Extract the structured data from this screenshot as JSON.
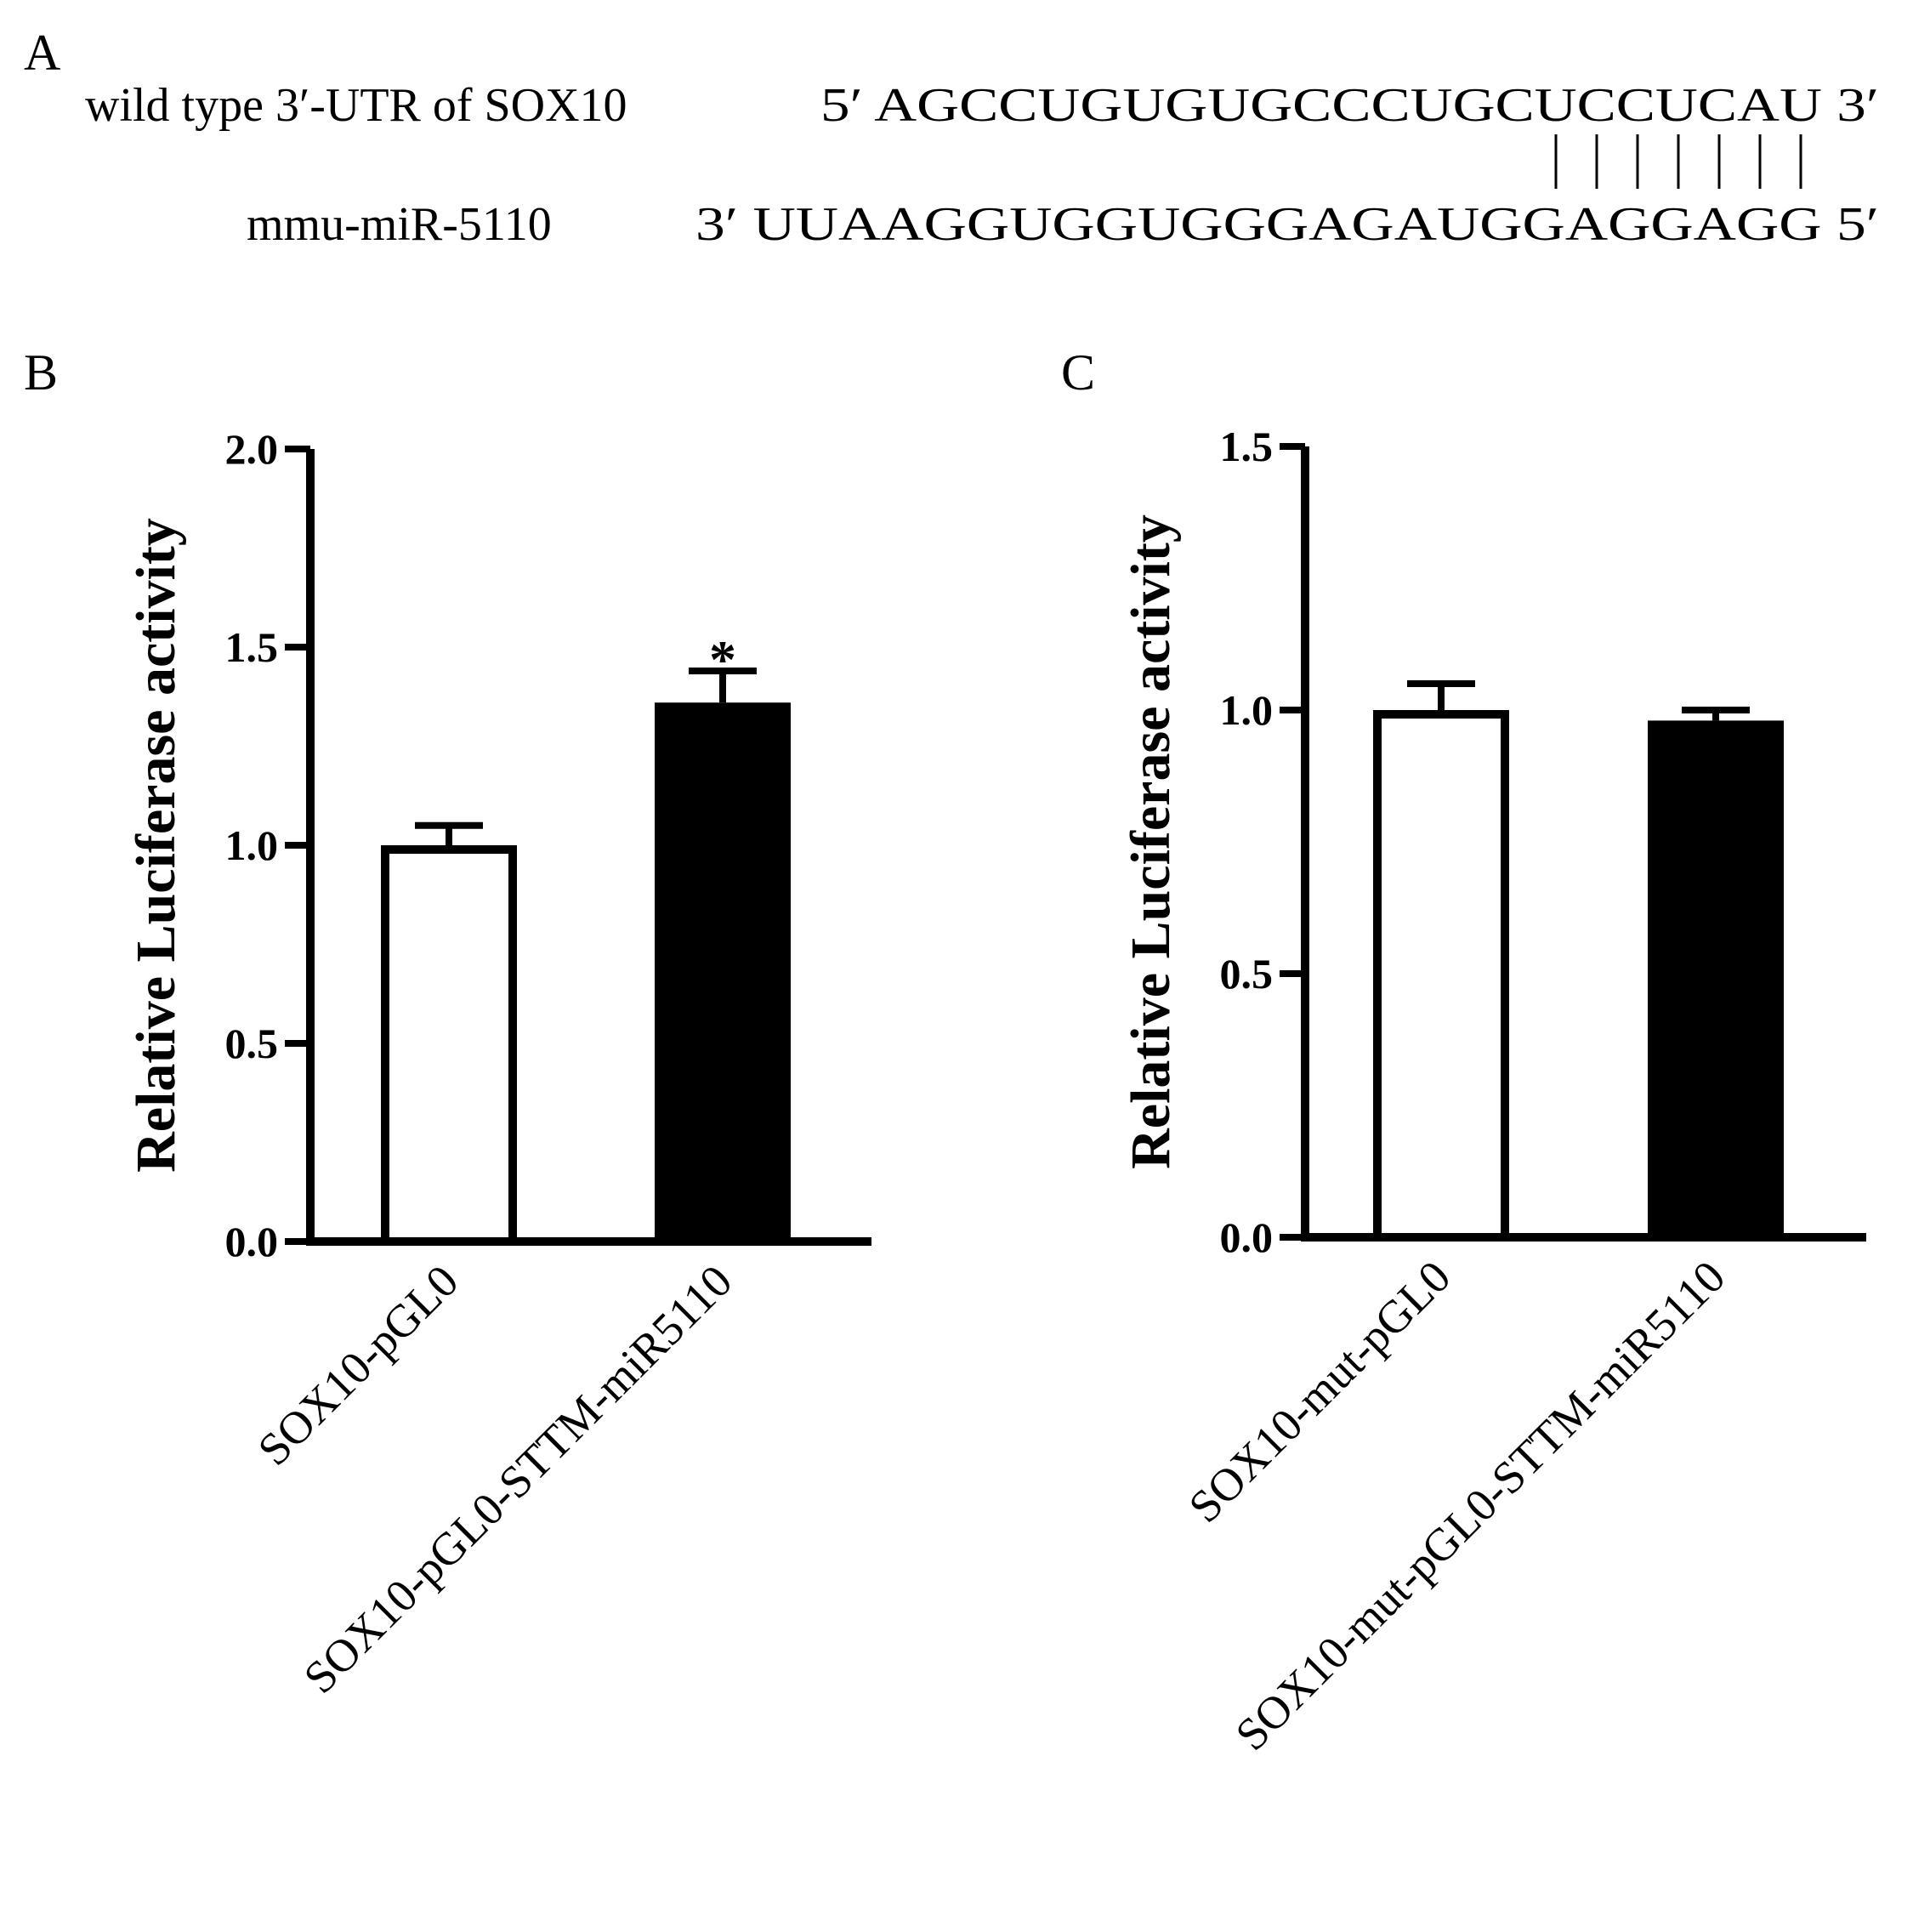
{
  "panel_a": {
    "letter": "A",
    "wild_type_label": "wild type 3′-UTR of SOX10",
    "wild_type_seq": "5′ AGCCUGUGUGCCCUGCUCCUCAU 3′",
    "mirna_label": "mmu-miR-5110",
    "mirna_seq": "3′  UUAAGGUGGUGGGAGAUGGAGGAGG 5′",
    "pairing_lines": 7
  },
  "chart_data": [
    {
      "panel": "B",
      "type": "bar",
      "categories": [
        "SOX10-pGL0",
        "SOX10-pGL0-STTM-miR5110"
      ],
      "values": [
        1.0,
        1.36
      ],
      "errors": [
        0.05,
        0.08
      ],
      "fills": [
        "#ffffff",
        "#000000"
      ],
      "annotations": [
        "",
        "*"
      ],
      "ylabel": "Relative Luciferase activity",
      "ylim": [
        0,
        2.0
      ],
      "yticks": [
        0.0,
        0.5,
        1.0,
        1.5,
        2.0
      ],
      "ytick_labels": [
        "0.0",
        "0.5",
        "1.0",
        "1.5",
        "2.0"
      ],
      "grid": false
    },
    {
      "panel": "C",
      "type": "bar",
      "categories": [
        "SOX10-mut-pGL0",
        "SOX10-mut-pGL0-STTM-miR5110"
      ],
      "values": [
        1.0,
        0.98
      ],
      "errors": [
        0.05,
        0.02
      ],
      "fills": [
        "#ffffff",
        "#000000"
      ],
      "annotations": [
        "",
        ""
      ],
      "ylabel": "Relative Luciferase activity",
      "ylim": [
        0,
        1.5
      ],
      "yticks": [
        0.0,
        0.5,
        1.0,
        1.5
      ],
      "ytick_labels": [
        "0.0",
        "0.5",
        "1.0",
        "1.5"
      ],
      "grid": false
    }
  ]
}
